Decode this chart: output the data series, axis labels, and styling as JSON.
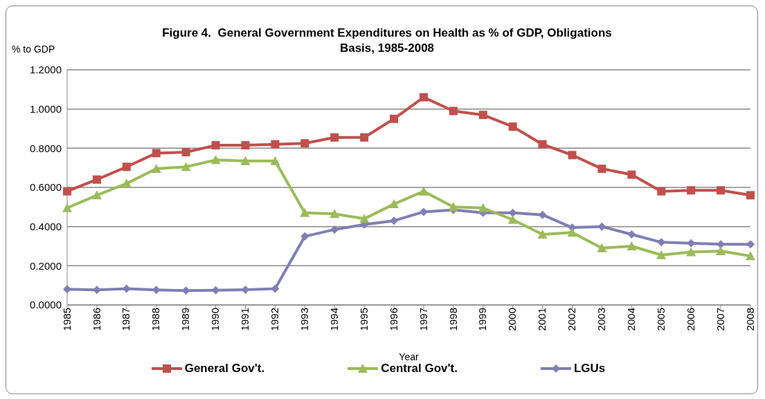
{
  "chart_data": {
    "type": "line",
    "title": "Figure 4.  General Government Expenditures on Health as % of GDP, Obligations Basis, 1985-2008",
    "ylabel": "% to GDP",
    "xlabel": "Year",
    "categories": [
      "1985",
      "1986",
      "1987",
      "1988",
      "1989",
      "1990",
      "1991",
      "1992",
      "1993",
      "1994",
      "1995",
      "1996",
      "1997",
      "1998",
      "1999",
      "2000",
      "2001",
      "2002",
      "2003",
      "2004",
      "2005",
      "2006",
      "2007",
      "2008"
    ],
    "series": [
      {
        "name": "General Gov't.",
        "color": "#c0504d",
        "marker": "square",
        "values": [
          0.58,
          0.64,
          0.705,
          0.775,
          0.78,
          0.815,
          0.815,
          0.82,
          0.825,
          0.855,
          0.855,
          0.95,
          1.06,
          0.99,
          0.97,
          0.91,
          0.82,
          0.765,
          0.695,
          0.665,
          0.58,
          0.585,
          0.585,
          0.56
        ]
      },
      {
        "name": "Central Gov't.",
        "color": "#9bbb59",
        "marker": "triangle",
        "values": [
          0.495,
          0.56,
          0.62,
          0.695,
          0.705,
          0.74,
          0.735,
          0.735,
          0.47,
          0.465,
          0.44,
          0.515,
          0.58,
          0.5,
          0.495,
          0.435,
          0.36,
          0.37,
          0.29,
          0.3,
          0.255,
          0.27,
          0.275,
          0.25
        ]
      },
      {
        "name": "LGUs",
        "color": "#7f7fb5",
        "marker": "diamond",
        "values": [
          0.08,
          0.077,
          0.083,
          0.077,
          0.073,
          0.075,
          0.078,
          0.083,
          0.35,
          0.385,
          0.41,
          0.43,
          0.475,
          0.485,
          0.47,
          0.47,
          0.46,
          0.395,
          0.4,
          0.36,
          0.32,
          0.315,
          0.31,
          0.31
        ]
      }
    ],
    "ylim": [
      0,
      1.2
    ],
    "yticks": [
      {
        "value": 0,
        "label": "0.0000"
      },
      {
        "value": 0.2,
        "label": "0.2000"
      },
      {
        "value": 0.4,
        "label": "0.4000"
      },
      {
        "value": 0.6,
        "label": "0.6000"
      },
      {
        "value": 0.8,
        "label": "0.8000"
      },
      {
        "value": 1,
        "label": "1.0000"
      },
      {
        "value": 1.2,
        "label": "1.2000"
      }
    ],
    "grid": "y",
    "legend": "bottom",
    "line_style": "solid"
  }
}
